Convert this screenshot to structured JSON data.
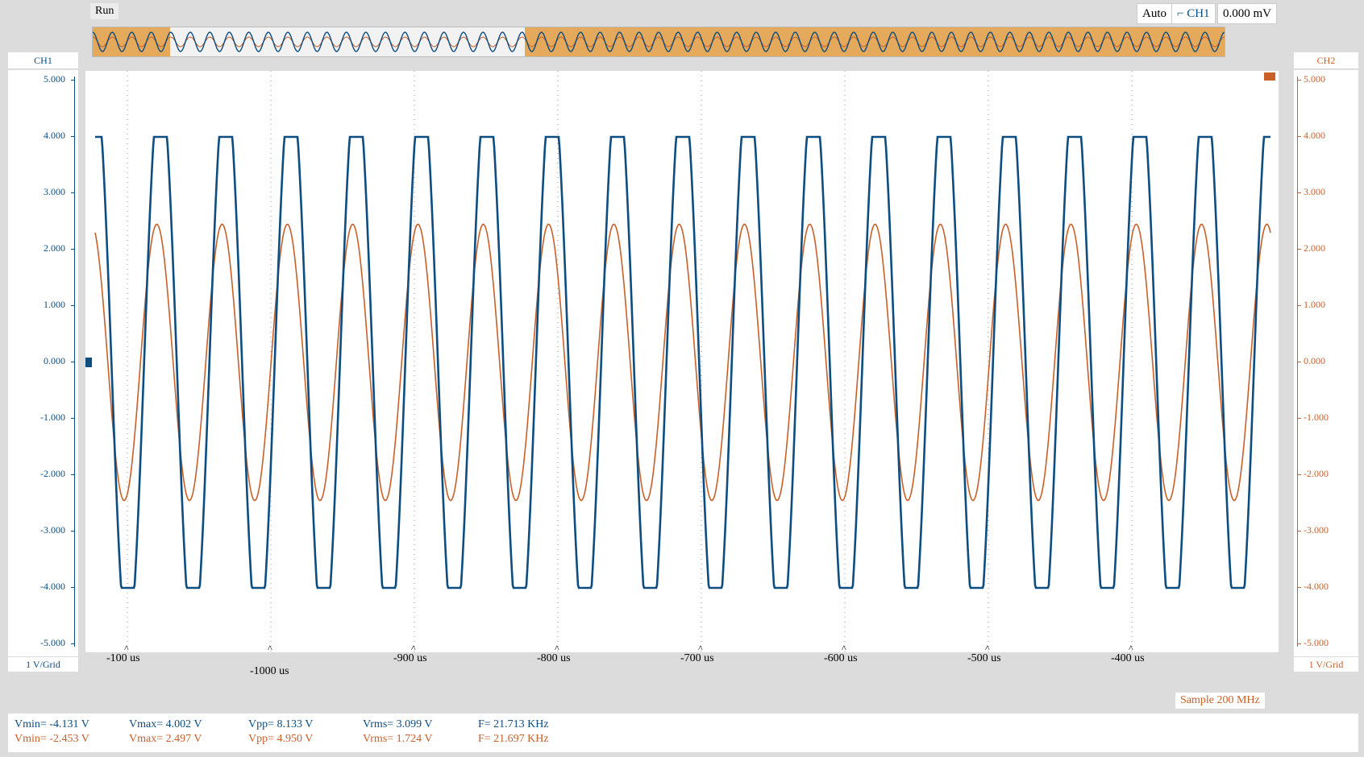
{
  "top_bar": {
    "run_label": "Run",
    "trigger_mode": "Auto",
    "trigger_source": "CH1",
    "trigger_level": "0.000 mV",
    "edge_icon": "rising-edge-icon"
  },
  "channels": {
    "ch1": {
      "label": "CH1",
      "scale": "1 V/Grid",
      "color": "#0d4d80",
      "ticks": [
        "5.000",
        "4.000",
        "3.000",
        "2.000",
        "1.000",
        "0.000",
        "-1.000",
        "-2.000",
        "-3.000",
        "-4.000",
        "-5.000"
      ]
    },
    "ch2": {
      "label": "CH2",
      "scale": "1 V/Grid",
      "color": "#c8602a",
      "ticks": [
        "5.000",
        "4.000",
        "3.000",
        "2.000",
        "1.000",
        "0.000",
        "-1.000",
        "-2.000",
        "-3.000",
        "-4.000",
        "-5.000"
      ]
    }
  },
  "x_ticks": [
    "-100 us",
    "-1000 us",
    "-900 us",
    "-800 us",
    "-700 us",
    "-600 us",
    "-500 us",
    "-400 us"
  ],
  "sample_rate": "Sample 200 MHz",
  "measurements": {
    "ch1": {
      "vmin": "Vmin= -4.131 V",
      "vmax": "Vmax= 4.002 V",
      "vpp": "Vpp= 8.133 V",
      "vrms": "Vrms= 3.099 V",
      "freq": "F= 21.713 KHz"
    },
    "ch2": {
      "vmin": "Vmin= -2.453 V",
      "vmax": "Vmax= 2.497 V",
      "vpp": "Vpp= 4.950 V",
      "vrms": "Vrms= 1.724 V",
      "freq": "F= 21.697 KHz"
    }
  },
  "waveform": {
    "cycles": 18,
    "ch1_amplitude": 4.0,
    "ch2_amplitude": 2.45,
    "y_range": [
      -5,
      5
    ]
  }
}
